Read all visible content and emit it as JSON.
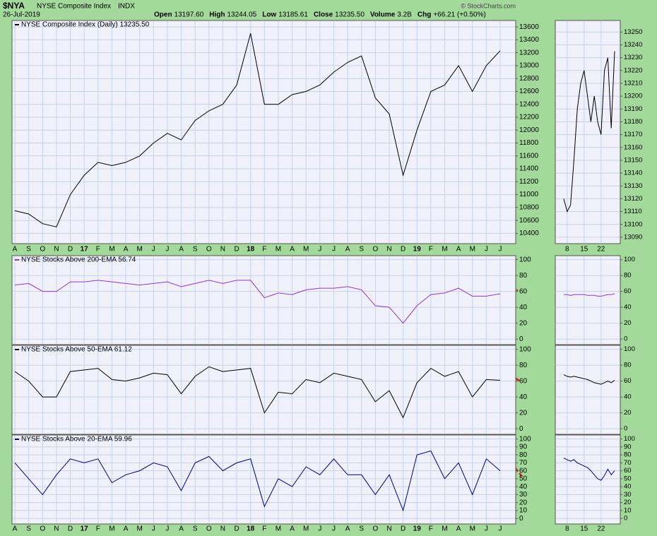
{
  "header": {
    "symbol": "$NYA",
    "name": "NYSE Composite Index",
    "exchange": "INDX",
    "date": "26-Jul-2019",
    "stats": [
      [
        "Open",
        "13197.60"
      ],
      [
        "High",
        "13244.05"
      ],
      [
        "Low",
        "13185.61"
      ],
      [
        "Close",
        "13235.50"
      ],
      [
        "Volume",
        "3.2B"
      ],
      [
        "Chg",
        "+66.21 (+0.50%)"
      ]
    ],
    "credit": "© StockCharts.com"
  },
  "chart_data": [
    {
      "type": "line",
      "categories": [
        "A",
        "S",
        "O",
        "N",
        "D",
        "17",
        "F",
        "M",
        "A",
        "M",
        "J",
        "J",
        "A",
        "S",
        "O",
        "N",
        "D",
        "18",
        "F",
        "M",
        "A",
        "M",
        "J",
        "J",
        "A",
        "S",
        "O",
        "N",
        "D",
        "19",
        "F",
        "M",
        "A",
        "M",
        "J",
        "J"
      ],
      "series": [
        {
          "name": "NYSE Composite Index (Daily) 13235.50",
          "color": "#000000",
          "values": [
            10750,
            10700,
            10550,
            10500,
            11000,
            11300,
            11500,
            11450,
            11500,
            11600,
            11800,
            11950,
            11850,
            12150,
            12300,
            12400,
            12700,
            13500,
            12400,
            12400,
            12550,
            12600,
            12700,
            12900,
            13050,
            13150,
            12500,
            12250,
            11300,
            12000,
            12600,
            12700,
            13000,
            12600,
            13000,
            13230
          ]
        }
      ],
      "ylim": [
        10240,
        13700
      ],
      "yticks": [
        10400,
        10600,
        10800,
        11000,
        11200,
        11400,
        11600,
        11800,
        12000,
        12200,
        12400,
        12600,
        12800,
        13000,
        13200,
        13400,
        13600
      ],
      "grid": true
    },
    {
      "type": "line",
      "categories": [
        "A",
        "S",
        "O",
        "N",
        "D",
        "17",
        "F",
        "M",
        "A",
        "M",
        "J",
        "J",
        "A",
        "S",
        "O",
        "N",
        "D",
        "18",
        "F",
        "M",
        "A",
        "M",
        "J",
        "J",
        "A",
        "S",
        "O",
        "N",
        "D",
        "19",
        "F",
        "M",
        "A",
        "M",
        "J",
        "J"
      ],
      "series": [
        {
          "name": "NYSE Stocks Above 200-EMA 56.74",
          "color": "#9933cc",
          "values": [
            68,
            70,
            60,
            60,
            72,
            72,
            74,
            72,
            70,
            68,
            70,
            72,
            66,
            70,
            74,
            70,
            74,
            74,
            52,
            58,
            56,
            62,
            64,
            64,
            66,
            62,
            42,
            40,
            20,
            42,
            56,
            58,
            64,
            54,
            54,
            57
          ]
        }
      ],
      "ylim": [
        -7,
        105
      ],
      "yticks": [
        0,
        20,
        40,
        60,
        80,
        100
      ],
      "grid": true
    },
    {
      "type": "line",
      "categories": [
        "A",
        "S",
        "O",
        "N",
        "D",
        "17",
        "F",
        "M",
        "A",
        "M",
        "J",
        "J",
        "A",
        "S",
        "O",
        "N",
        "D",
        "18",
        "F",
        "M",
        "A",
        "M",
        "J",
        "J",
        "A",
        "S",
        "O",
        "N",
        "D",
        "19",
        "F",
        "M",
        "A",
        "M",
        "J",
        "J"
      ],
      "series": [
        {
          "name": "NYSE Stocks Above 50-EMA 61.12",
          "color": "#000000",
          "values": [
            72,
            60,
            40,
            40,
            72,
            74,
            76,
            62,
            60,
            64,
            70,
            68,
            44,
            66,
            78,
            72,
            74,
            76,
            20,
            46,
            44,
            62,
            58,
            70,
            66,
            62,
            34,
            48,
            14,
            58,
            76,
            66,
            72,
            40,
            62,
            61
          ]
        }
      ],
      "ylim": [
        -7,
        105
      ],
      "yticks": [
        0,
        20,
        40,
        60,
        80,
        100
      ],
      "grid": true
    },
    {
      "type": "line",
      "categories": [
        "A",
        "S",
        "O",
        "N",
        "D",
        "17",
        "F",
        "M",
        "A",
        "M",
        "J",
        "J",
        "A",
        "S",
        "O",
        "N",
        "D",
        "18",
        "F",
        "M",
        "A",
        "M",
        "J",
        "J",
        "A",
        "S",
        "O",
        "N",
        "D",
        "19",
        "F",
        "M",
        "A",
        "M",
        "J",
        "J"
      ],
      "series": [
        {
          "name": "NYSE Stocks Above 20-EMA 59.96",
          "color": "#000080",
          "values": [
            70,
            50,
            30,
            55,
            75,
            70,
            75,
            45,
            55,
            60,
            70,
            65,
            35,
            70,
            78,
            60,
            70,
            75,
            15,
            50,
            40,
            65,
            55,
            75,
            55,
            55,
            30,
            55,
            10,
            80,
            85,
            50,
            70,
            30,
            75,
            60
          ]
        }
      ],
      "ylim": [
        -7,
        105
      ],
      "yticks": [
        0,
        10,
        20,
        30,
        40,
        50,
        60,
        70,
        80,
        90,
        100
      ],
      "grid": true
    },
    {
      "type": "line",
      "categories": [
        null,
        "8",
        null,
        null,
        null,
        null,
        "15",
        null,
        null,
        null,
        null,
        "22",
        null,
        null,
        null,
        null
      ],
      "series": [
        {
          "color": "#000000",
          "values": [
            13120,
            13110,
            13115,
            13150,
            13190,
            13210,
            13220,
            13200,
            13180,
            13200,
            13180,
            13170,
            13220,
            13230,
            13175,
            13235
          ]
        }
      ],
      "ylim": [
        13085,
        13259
      ],
      "yticks": [
        13090,
        13100,
        13110,
        13120,
        13130,
        13140,
        13150,
        13160,
        13170,
        13180,
        13190,
        13200,
        13210,
        13220,
        13230,
        13240,
        13250
      ],
      "grid": true
    },
    {
      "type": "line",
      "categories": [
        null,
        "8",
        null,
        null,
        null,
        null,
        "15",
        null,
        null,
        null,
        null,
        "22",
        null,
        null,
        null,
        null
      ],
      "series": [
        {
          "color": "#9933cc",
          "values": [
            56,
            56,
            55,
            56,
            56,
            56,
            56,
            55,
            55,
            55,
            54,
            54,
            55,
            56,
            56,
            57
          ]
        }
      ],
      "ylim": [
        -7,
        105
      ],
      "yticks": [
        0,
        20,
        40,
        60,
        80,
        100
      ],
      "grid": true
    },
    {
      "type": "line",
      "categories": [
        null,
        "8",
        null,
        null,
        null,
        null,
        "15",
        null,
        null,
        null,
        null,
        "22",
        null,
        null,
        null,
        null
      ],
      "series": [
        {
          "color": "#000000",
          "values": [
            68,
            66,
            65,
            66,
            65,
            64,
            63,
            62,
            60,
            58,
            57,
            56,
            58,
            60,
            58,
            61
          ]
        }
      ],
      "ylim": [
        -7,
        105
      ],
      "yticks": [
        0,
        20,
        40,
        60,
        80,
        100
      ],
      "grid": true
    },
    {
      "type": "line",
      "categories": [
        null,
        "8",
        null,
        null,
        null,
        null,
        "15",
        null,
        null,
        null,
        null,
        "22",
        null,
        null,
        null,
        null
      ],
      "series": [
        {
          "color": "#000080",
          "values": [
            76,
            74,
            72,
            74,
            70,
            68,
            66,
            64,
            60,
            55,
            50,
            48,
            54,
            62,
            55,
            60
          ]
        }
      ],
      "ylim": [
        -7,
        105
      ],
      "yticks": [
        0,
        10,
        20,
        30,
        40,
        50,
        60,
        70,
        80,
        90,
        100
      ],
      "grid": true
    }
  ]
}
